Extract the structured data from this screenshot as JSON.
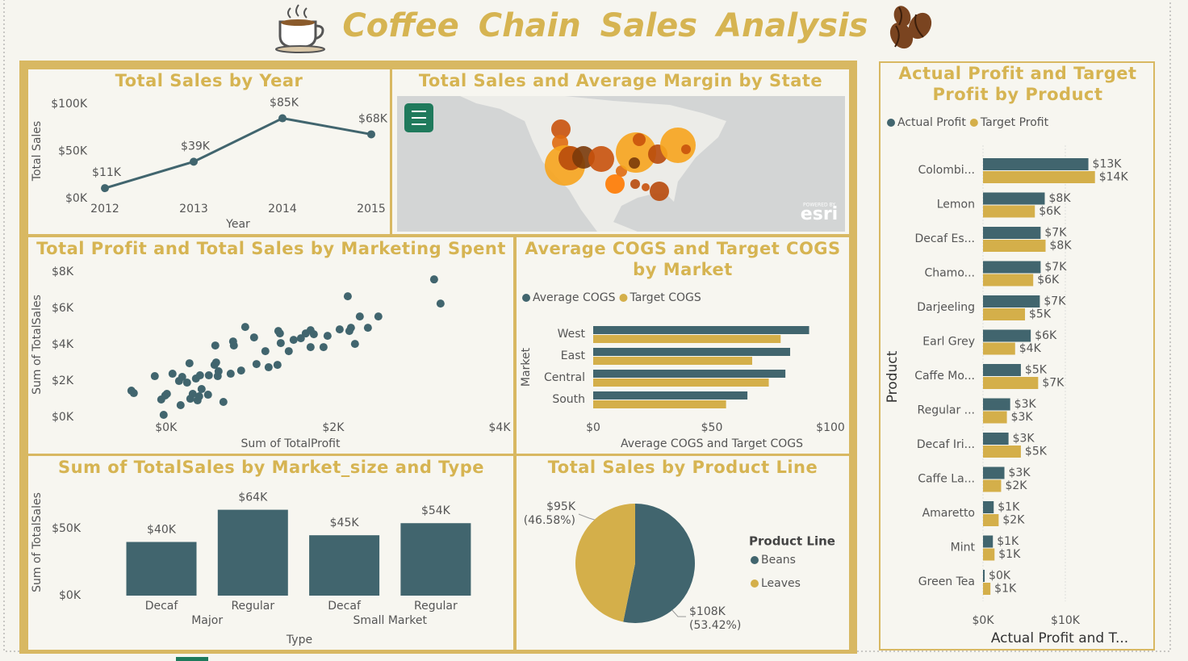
{
  "title": "Coffee Chain Sales Analysis",
  "chart_data": [
    {
      "type": "line",
      "title": "Total Sales by Year",
      "categories": [
        "2012",
        "2013",
        "2014",
        "2015"
      ],
      "values": [
        11000,
        39000,
        85000,
        68000
      ],
      "value_labels": [
        "$11K",
        "$39K",
        "$85K",
        "$68K"
      ],
      "color": "#41656e",
      "ylim": [
        0,
        100000
      ],
      "yticks": [
        {
          "value": 0,
          "label": "$0K"
        },
        {
          "value": 50000,
          "label": "$50K"
        },
        {
          "value": 100000,
          "label": "$100K"
        }
      ],
      "x_label": "Year",
      "y_label": "Total Sales",
      "grid": false
    },
    {
      "type": "map",
      "title": "Total Sales and Average Margin by State",
      "attribution_note": "POWERED BY",
      "attribution": "esri"
    },
    {
      "type": "scatter",
      "title": "Total Profit and Total Sales by Marketing Spent",
      "x": [
        -415,
        -386,
        -135,
        77,
        -58,
        -10,
        10,
        -29,
        155,
        193,
        174,
        280,
        251,
        290,
        319,
        357,
        377,
        406,
        425,
        396,
        502,
        512,
        580,
        599,
        618,
        589,
        628,
        686,
        773,
        811,
        802,
        898,
        947,
        1053,
        1082,
        1188,
        1227,
        1333,
        1343,
        1362,
        1372,
        1468,
        1526,
        1613,
        1671,
        1729,
        1768,
        1729,
        1884,
        1932,
        2077,
        2174,
        2212,
        2193,
        2260,
        2318,
        2415,
        2540,
        3207,
        3284
      ],
      "values": [
        1465,
        1332,
        2265,
        2398,
        977,
        1199,
        1288,
        133,
        1998,
        2220,
        666,
        2975,
        1909,
        1021,
        1288,
        2131,
        932,
        2309,
        1554,
        1154,
        1243,
        2309,
        2886,
        3019,
        2264,
        3952,
        2531,
        844,
        2398,
        3952,
        4174,
        2575,
        4973,
        4396,
        2930,
        3641,
        2753,
        2886,
        4751,
        4618,
        4085,
        3641,
        4262,
        4351,
        4618,
        4795,
        4573,
        3863,
        3863,
        4484,
        4840,
        6660,
        4928,
        4751,
        4040,
        5550,
        4928,
        5550,
        7592,
        6260
      ],
      "color": "#41656e",
      "xlim": [
        -500,
        4000
      ],
      "xticks": [
        {
          "value": 0,
          "label": "$0K"
        },
        {
          "value": 2000,
          "label": "$2K"
        },
        {
          "value": 4000,
          "label": "$4K"
        }
      ],
      "ylim": [
        0,
        8000
      ],
      "yticks": [
        {
          "value": 0,
          "label": "$0K"
        },
        {
          "value": 2000,
          "label": "$2K"
        },
        {
          "value": 4000,
          "label": "$4K"
        },
        {
          "value": 6000,
          "label": "$6K"
        },
        {
          "value": 8000,
          "label": "$8K"
        }
      ],
      "x_label": "Sum of TotalProfit",
      "y_label": "Sum of TotalSales",
      "grid": false
    },
    {
      "type": "hbar",
      "title": "Average COGS and Target COGS by Market",
      "categories": [
        "West",
        "East",
        "Central",
        "South"
      ],
      "series": [
        {
          "name": "Average COGS",
          "color": "#41656e",
          "values": [
            91,
            83,
            81,
            65
          ]
        },
        {
          "name": "Target COGS",
          "color": "#d4af4a",
          "values": [
            79,
            67,
            74,
            56
          ]
        }
      ],
      "xlim": [
        0,
        100
      ],
      "xticks": [
        {
          "value": 0,
          "label": "$0"
        },
        {
          "value": 50,
          "label": "$50"
        },
        {
          "value": 100,
          "label": "$100"
        }
      ],
      "x_label": "Average COGS and Target COGS",
      "y_label": "Market",
      "legend": "top-left",
      "grid": false
    },
    {
      "type": "bar",
      "title": "Sum of TotalSales by Market_size and Type",
      "groups": [
        {
          "name": "Major",
          "categories": [
            "Decaf",
            "Regular"
          ]
        },
        {
          "name": "Small Market",
          "categories": [
            "Decaf",
            "Regular"
          ]
        }
      ],
      "values": [
        40000,
        64000,
        45000,
        54000
      ],
      "value_labels": [
        "$40K",
        "$64K",
        "$45K",
        "$54K"
      ],
      "color": "#41656e",
      "ylim": [
        0,
        80000
      ],
      "yticks": [
        {
          "value": 0,
          "label": "$0K"
        },
        {
          "value": 50000,
          "label": "$50K"
        }
      ],
      "x_label": "Type",
      "y_label": "Sum of TotalSales",
      "grid": false
    },
    {
      "type": "pie",
      "title": "Total Sales by Product Line",
      "legend_title": "Product Line",
      "legend": "right",
      "categories": [
        "Beans",
        "Leaves"
      ],
      "values": [
        108000,
        95000
      ],
      "value_labels": [
        "$108K",
        "$95K"
      ],
      "percents": [
        53.42,
        46.58
      ],
      "percent_labels": [
        "(53.42%)",
        "(46.58%)"
      ],
      "colors": [
        "#41656e",
        "#d4af4a"
      ]
    },
    {
      "type": "hbar",
      "title": "Actual Profit and Target Profit by Product",
      "categories": [
        "Colombi...",
        "Lemon",
        "Decaf Es...",
        "Chamo...",
        "Darjeeling",
        "Earl Grey",
        "Caffe Mo...",
        "Regular ...",
        "Decaf Iri...",
        "Caffe La...",
        "Amaretto",
        "Mint",
        "Green Tea"
      ],
      "series": [
        {
          "name": "Actual Profit",
          "color": "#41656e",
          "values": [
            12800,
            7500,
            7000,
            7000,
            6900,
            5800,
            4600,
            3300,
            3100,
            2600,
            1300,
            1200,
            200
          ],
          "value_labels": [
            "$13K",
            "$8K",
            "$7K",
            "$7K",
            "$7K",
            "$6K",
            "$5K",
            "$3K",
            "$3K",
            "$3K",
            "$1K",
            "$1K",
            "$0K"
          ]
        },
        {
          "name": "Target Profit",
          "color": "#d4af4a",
          "values": [
            13600,
            6300,
            7600,
            6100,
            5100,
            3900,
            6700,
            2900,
            4600,
            2200,
            1900,
            1400,
            900
          ],
          "value_labels": [
            "$14K",
            "$6K",
            "$8K",
            "$6K",
            "$5K",
            "$4K",
            "$7K",
            "$3K",
            "$5K",
            "$2K",
            "$2K",
            "$1K",
            "$1K"
          ]
        }
      ],
      "xlim": [
        0,
        18000
      ],
      "xticks": [
        {
          "value": 0,
          "label": "$0K"
        },
        {
          "value": 10000,
          "label": "$10K"
        }
      ],
      "x_label": "Actual Profit and T...",
      "y_label": "Product",
      "legend": "top-left",
      "grid": true
    }
  ]
}
